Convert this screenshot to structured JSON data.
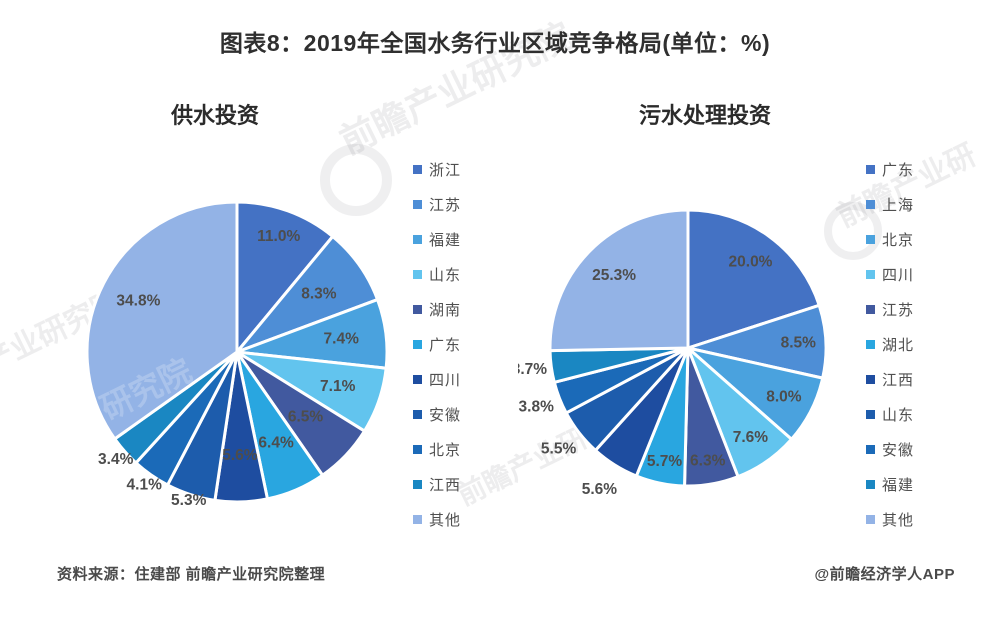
{
  "title": "图表8：2019年全国水务行业区域竞争格局(单位：%)",
  "label_color": "#4d4d4d",
  "palette": [
    "#4472c4",
    "#4e8ed6",
    "#4aa2de",
    "#62c4ee",
    "#41599f",
    "#29a6e0",
    "#1e4da0",
    "#1d5cac",
    "#1b6ab8",
    "#1a87c2",
    "#93b3e6"
  ],
  "chart_data": [
    {
      "type": "pie",
      "title": "供水投资",
      "unit": "%",
      "legend_position": "right",
      "start_angle": 0,
      "categories": [
        "浙江",
        "江苏",
        "福建",
        "山东",
        "湖南",
        "广东",
        "四川",
        "安徽",
        "北京",
        "江西",
        "其他"
      ],
      "values": [
        11.0,
        8.3,
        7.4,
        7.1,
        6.5,
        6.4,
        5.6,
        5.3,
        4.1,
        3.4,
        34.8
      ],
      "labels": [
        "11.0%",
        "8.3%",
        "7.4%",
        "7.1%",
        "6.5%",
        "6.4%",
        "5.6%",
        "5.3%",
        "4.1%",
        "3.4%",
        "34.8%"
      ],
      "label_radius": [
        0.82,
        0.67,
        0.7,
        0.71,
        0.63,
        0.66,
        0.69,
        1.04,
        1.08,
        1.08,
        0.74
      ]
    },
    {
      "type": "pie",
      "title": "污水处理投资",
      "unit": "%",
      "legend_position": "right",
      "start_angle": 0,
      "categories": [
        "广东",
        "上海",
        "北京",
        "四川",
        "江苏",
        "湖北",
        "江西",
        "山东",
        "安徽",
        "福建",
        "其他"
      ],
      "values": [
        20.0,
        8.5,
        8.0,
        7.6,
        6.3,
        5.7,
        5.6,
        5.5,
        3.8,
        3.7,
        25.3
      ],
      "labels": [
        "20.0%",
        "8.5%",
        "8.0%",
        "7.6%",
        "6.3%",
        "5.7%",
        "5.6%",
        "5.5%",
        "3.8%",
        "3.7%",
        "25.3%"
      ],
      "label_radius": [
        0.77,
        0.8,
        0.78,
        0.79,
        0.83,
        0.84,
        1.21,
        1.19,
        1.18,
        1.16,
        0.75
      ]
    }
  ],
  "footer": {
    "source": "资料来源：住建部 前瞻产业研究院整理",
    "credit": "@前瞻经济学人APP"
  },
  "watermark": {
    "fragments": [
      "前瞻产业研究院",
      "前瞻产业研",
      "产业研究院",
      "前瞻产业研究院",
      "研究院"
    ]
  }
}
